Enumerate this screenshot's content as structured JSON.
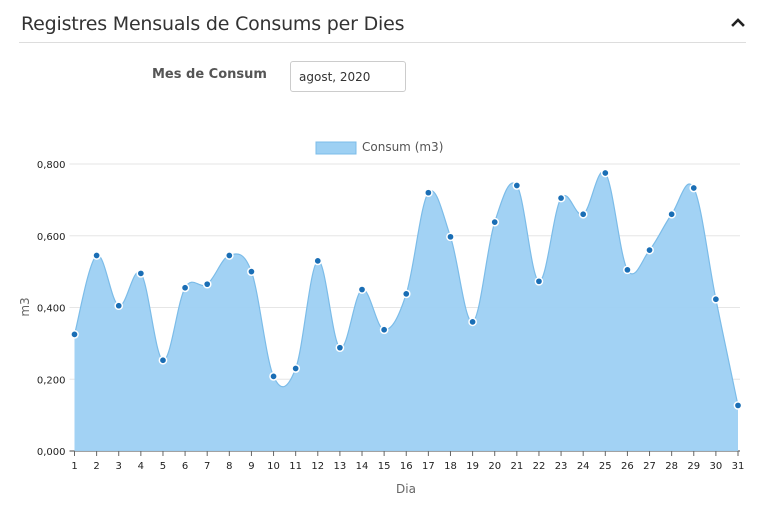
{
  "panel": {
    "title": "Registres Mensuals de Consums per Dies"
  },
  "form": {
    "month_label": "Mes de Consum",
    "month_value": "agost, 2020"
  },
  "colors": {
    "area_fill": "#9dd0f3",
    "line": "#7cbce8",
    "point": "#1a6eb5"
  },
  "chart_data": {
    "type": "area",
    "title": "",
    "xlabel": "Dia",
    "ylabel": "m3",
    "ylim": [
      0,
      0.8
    ],
    "yticks": [
      "0,000",
      "0,200",
      "0,400",
      "0,600",
      "0,800"
    ],
    "grid": true,
    "legend_placement": "top-center",
    "categories": [
      "1",
      "2",
      "3",
      "4",
      "5",
      "6",
      "7",
      "8",
      "9",
      "10",
      "11",
      "12",
      "13",
      "14",
      "15",
      "16",
      "17",
      "18",
      "19",
      "20",
      "21",
      "22",
      "23",
      "24",
      "25",
      "26",
      "27",
      "28",
      "29",
      "30",
      "31"
    ],
    "series": [
      {
        "name": "Consum (m3)",
        "values": [
          0.325,
          0.545,
          0.405,
          0.495,
          0.253,
          0.455,
          0.465,
          0.545,
          0.5,
          0.208,
          0.23,
          0.53,
          0.288,
          0.45,
          0.338,
          0.438,
          0.72,
          0.597,
          0.36,
          0.638,
          0.74,
          0.473,
          0.705,
          0.66,
          0.775,
          0.505,
          0.56,
          0.66,
          0.733,
          0.423,
          0.127
        ]
      }
    ]
  }
}
